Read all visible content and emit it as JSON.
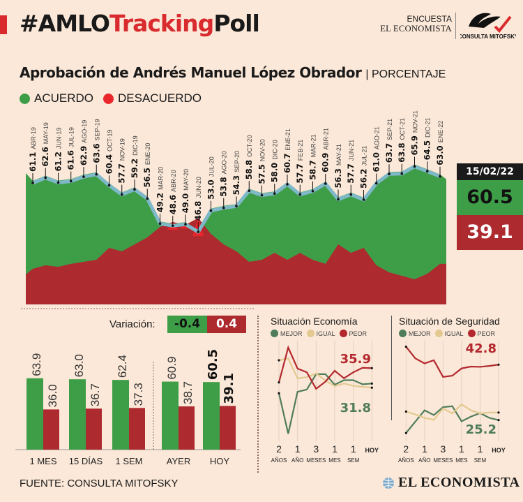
{
  "header": {
    "title_a": "#AMLO",
    "title_b": "Tracking",
    "title_c": "Poll",
    "encuesta": "ENCUESTA",
    "el_economista": "EL ECONOMISTA",
    "mitofsky_logo": "CONSULTA MITOFSKY"
  },
  "subtitle": {
    "title": "Aprobación de Andrés Manuel López Obrador",
    "unit": "| PORCENTAJE"
  },
  "legend": [
    {
      "label": "ACUERDO",
      "color": "#3e9e48"
    },
    {
      "label": "DESACUERDO",
      "color": "#e8262b"
    }
  ],
  "colors": {
    "green": "#3e9e48",
    "red": "#ad2a2f",
    "bright_red": "#e8262b",
    "line": "#7fb9c9",
    "bg": "#fbe8d8"
  },
  "current": {
    "date": "15/02/22",
    "acuerdo": "60.5",
    "desacuerdo": "39.1"
  },
  "variacion": {
    "label": "Variación:",
    "acuerdo": "-0.4",
    "desacuerdo": "0.4"
  },
  "chart_data": [
    {
      "type": "area",
      "title": "Aprobación de Andrés Manuel López Obrador",
      "ylabel": "PORCENTAJE",
      "categories": [
        "ABR-19",
        "MAY-19",
        "JUN-19",
        "JUL-19",
        "AGO-19",
        "SEP-19",
        "OCT-19",
        "NOV-19",
        "DIC-19",
        "ENE-20",
        "MAR-20",
        "ABR-20",
        "MAY-20",
        "JUN-20",
        "JUL-20",
        "AGO-20",
        "SEP-20",
        "OCT-20",
        "NOV-20",
        "DIC-20",
        "ENE-21",
        "FEB-21",
        "MAR-21",
        "ABR-21",
        "MAY-21",
        "JUN-21",
        "JUL-21",
        "AGO-21",
        "SEP-21",
        "OCT-21",
        "NOV-21",
        "DIC-21",
        "ENE-22"
      ],
      "series": [
        {
          "name": "ACUERDO",
          "values": [
            61.1,
            62.6,
            61.2,
            61.6,
            62.9,
            63.6,
            60.4,
            57.7,
            59.2,
            56.5,
            49.2,
            48.6,
            49.0,
            46.8,
            53.0,
            53.8,
            54.3,
            58.8,
            57.5,
            58.0,
            60.7,
            57.7,
            58.7,
            60.9,
            56.3,
            57.7,
            56.2,
            61.0,
            63.7,
            63.8,
            65.9,
            64.5,
            63.0
          ]
        },
        {
          "name": "DESACUERDO",
          "values": [
            36,
            37.4,
            36.8,
            38,
            38.8,
            39.6,
            44.4,
            43,
            45.8,
            48.6,
            52.8,
            54.8,
            53.6,
            56.4,
            50,
            45.8,
            43,
            38.8,
            39.6,
            42.4,
            39.6,
            42.4,
            39.6,
            38,
            45.8,
            42.4,
            44.4,
            37.4,
            34.6,
            33.2,
            31.8,
            34,
            38
          ]
        }
      ]
    },
    {
      "type": "bar",
      "categories": [
        "1 MES",
        "15 DÍAS",
        "1 SEM",
        "AYER",
        "HOY"
      ],
      "series": [
        {
          "name": "ACUERDO",
          "values": [
            63.9,
            63.0,
            62.4,
            60.9,
            60.5
          ]
        },
        {
          "name": "DESACUERDO",
          "values": [
            36.0,
            36.7,
            37.3,
            38.7,
            39.1
          ]
        }
      ],
      "labels": {
        "acuerdo": [
          "63.9",
          "63.0",
          "62.4",
          "60.9",
          "60.5"
        ],
        "desacuerdo": [
          "36.0",
          "36.7",
          "37.3",
          "38.7",
          "39.1"
        ]
      }
    },
    {
      "type": "line",
      "title": "Situación Economía",
      "x_ticks": [
        [
          "2",
          "AÑOS"
        ],
        [
          "1",
          "AÑO"
        ],
        [
          "3",
          "MESES"
        ],
        [
          "1",
          "MES"
        ],
        [
          "1",
          "SEM"
        ],
        [
          "",
          "HOY"
        ]
      ],
      "series": [
        {
          "name": "MEJOR",
          "color": "#4f7c5a",
          "values": [
            29.2,
            18.4,
            29.6,
            30.2,
            34.3,
            34.3,
            31.5,
            32.7,
            32.7,
            31.6,
            31.8
          ]
        },
        {
          "name": "IGUAL",
          "color": "#e3c98f",
          "values": [
            38.0,
            38.5,
            33.2,
            33.5,
            34.5,
            32.6,
            31.1,
            31.8,
            31.2,
            30.9,
            30.7
          ]
        },
        {
          "name": "PEOR",
          "color": "#b3282e",
          "values": [
            32.1,
            41.4,
            35.8,
            34.8,
            30.4,
            32.3,
            35.2,
            33.2,
            34.8,
            36.0,
            35.9
          ]
        }
      ],
      "annotations": {
        "peor": "35.9",
        "mejor": "31.8"
      }
    },
    {
      "type": "line",
      "title": "Situación de Seguridad",
      "x_ticks": [
        [
          "2",
          "AÑOS"
        ],
        [
          "1",
          "AÑO"
        ],
        [
          "3",
          "MESES"
        ],
        [
          "1",
          "MES"
        ],
        [
          "1",
          "SEM"
        ],
        [
          "",
          "HOY"
        ]
      ],
      "series": [
        {
          "name": "MEJOR",
          "color": "#4f7c5a",
          "values": [
            21.1,
            24.7,
            28.3,
            26.8,
            29.3,
            29.6,
            24.8,
            26.3,
            27.4,
            25.9,
            25.2
          ]
        },
        {
          "name": "IGUAL",
          "color": "#e3c98f",
          "values": [
            27.9,
            27.0,
            25.9,
            25.3,
            28.9,
            27.3,
            30.2,
            28.3,
            27.3,
            27.6,
            27.6
          ]
        },
        {
          "name": "PEOR",
          "color": "#b3282e",
          "values": [
            48.5,
            44.8,
            43.2,
            44.2,
            38.9,
            39.3,
            41.6,
            42.2,
            42.1,
            42.4,
            42.8
          ]
        }
      ],
      "annotations": {
        "peor": "42.8",
        "mejor": "25.2"
      }
    }
  ],
  "footer": {
    "source": "FUENTE: CONSULTA MITOFSKY",
    "logo": "EL ECONOMISTA"
  }
}
